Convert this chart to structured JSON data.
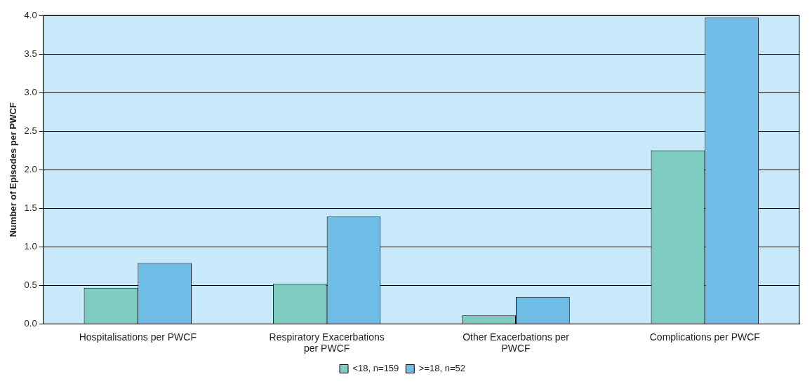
{
  "chart_data": {
    "type": "bar",
    "ylabel": "Number of Episodes per PWCF",
    "categories": [
      "Hospitalisations per PWCF",
      "Respiratory Exacerbations per PWCF",
      "Other Exacerbations per PWCF",
      "Complications per PWCF"
    ],
    "series": [
      {
        "name": "<18, n=159",
        "color": "#7ecdc0",
        "values": [
          0.47,
          0.52,
          0.11,
          2.25
        ]
      },
      {
        "name": ">=18, n=52",
        "color": "#6fbde6",
        "values": [
          0.79,
          1.39,
          0.35,
          3.97
        ]
      }
    ],
    "ylim": [
      0,
      4
    ],
    "yticks": [
      {
        "value": 0,
        "label": "0.0"
      },
      {
        "value": 0.5,
        "label": "0.5"
      },
      {
        "value": 1,
        "label": "1.0"
      },
      {
        "value": 1.5,
        "label": "1.5"
      },
      {
        "value": 2,
        "label": "2.0"
      },
      {
        "value": 2.5,
        "label": "2.5"
      },
      {
        "value": 3,
        "label": "3.0"
      },
      {
        "value": 3.5,
        "label": "3.5"
      },
      {
        "value": 4,
        "label": "4.0"
      }
    ],
    "grid": "y",
    "legend": "bottom"
  }
}
